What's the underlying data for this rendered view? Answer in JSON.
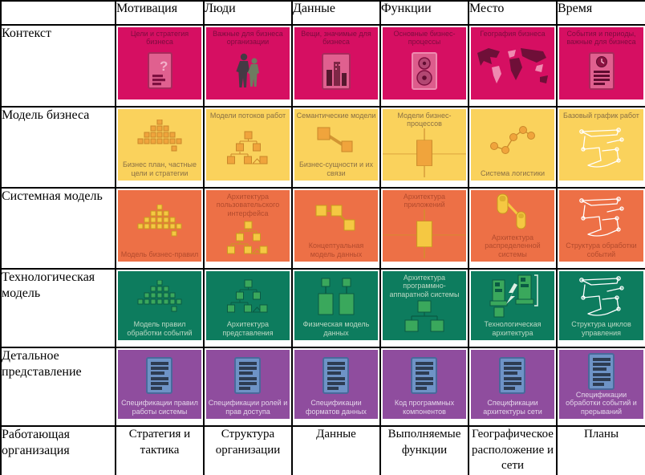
{
  "table": {
    "title": "zachman-framework-matrix",
    "corner_label": "",
    "columns": [
      {
        "key": "motivation",
        "label": "Мотивация"
      },
      {
        "key": "people",
        "label": "Люди"
      },
      {
        "key": "data",
        "label": "Данные"
      },
      {
        "key": "functions",
        "label": "Функции"
      },
      {
        "key": "place",
        "label": "Место"
      },
      {
        "key": "time",
        "label": "Время"
      }
    ],
    "rows": [
      {
        "key": "context",
        "label": "Контекст",
        "type": "colored",
        "bg_color": "#d60f62",
        "caption_color": "#7c0c3e",
        "icon_fill": "#e0608f",
        "icon_stroke": "#8c1342",
        "cells": [
          {
            "caption_top": "Цели и стратегия бизнеса",
            "caption_bottom": "",
            "icon": "document-question"
          },
          {
            "caption_top": "Важные для бизнеса организации",
            "caption_bottom": "",
            "icon": "people-pair"
          },
          {
            "caption_top": "Вещи, значимые для бизнеса",
            "caption_bottom": "",
            "icon": "city-buildings"
          },
          {
            "caption_top": "Основные бизнес-процессы",
            "caption_bottom": "",
            "icon": "process-disks"
          },
          {
            "caption_top": "География бизнеса",
            "caption_bottom": "",
            "icon": "world-map"
          },
          {
            "caption_top": "События и периоды, важные для бизнеса",
            "caption_bottom": "",
            "icon": "document-clock"
          }
        ]
      },
      {
        "key": "business-model",
        "label": "Модель бизнеса",
        "type": "colored",
        "bg_color": "#fad25c",
        "caption_color": "#8a7044",
        "icon_fill": "#f0a43c",
        "icon_stroke": "#c9872a",
        "cells": [
          {
            "caption_top": "",
            "caption_bottom": "Бизнес план, частные цели и стратегии",
            "icon": "pyramid"
          },
          {
            "caption_top": "Модели потоков работ",
            "caption_bottom": "",
            "icon": "workflow-tree"
          },
          {
            "caption_top": "Семантические модели",
            "caption_bottom": "Бизнес-сущности и их связи",
            "icon": "entity-link"
          },
          {
            "caption_top": "Модели бизнес-процессов",
            "caption_bottom": "",
            "icon": "swimlane"
          },
          {
            "caption_top": "",
            "caption_bottom": "Система логистики",
            "icon": "logistics-network"
          },
          {
            "caption_top": "Базовый график работ",
            "caption_bottom": "",
            "icon": "schedule-sketch"
          }
        ]
      },
      {
        "key": "system-model",
        "label": "Системная модель",
        "type": "colored",
        "bg_color": "#ed7046",
        "caption_color": "#b34b2d",
        "icon_fill": "#f5c842",
        "icon_stroke": "#c99a1f",
        "cells": [
          {
            "caption_top": "",
            "caption_bottom": "Модель бизнес-правил",
            "icon": "pyramid"
          },
          {
            "caption_top": "Архитектура пользовательского интерфейса",
            "caption_bottom": "",
            "icon": "workflow-tree"
          },
          {
            "caption_top": "",
            "caption_bottom": "Концептуальная модель данных",
            "icon": "entity-chain"
          },
          {
            "caption_top": "Архитектура приложений",
            "caption_bottom": "",
            "icon": "swimlane"
          },
          {
            "caption_top": "",
            "caption_bottom": "Архитектура распределенной системы",
            "icon": "capsule-link"
          },
          {
            "caption_top": "",
            "caption_bottom": "Структура обработки событий",
            "icon": "schedule-sketch"
          }
        ]
      },
      {
        "key": "technology-model",
        "label": "Технологическая модель",
        "type": "colored",
        "bg_color": "#0d7c5e",
        "caption_color": "#bcd9c4",
        "icon_fill": "#3aa85c",
        "icon_stroke": "#0a5a43",
        "cells": [
          {
            "caption_top": "",
            "caption_bottom": "Модель правил обработки событий",
            "icon": "pyramid"
          },
          {
            "caption_top": "",
            "caption_bottom": "Архитектура представления",
            "icon": "workflow-tree"
          },
          {
            "caption_top": "",
            "caption_bottom": "Физическая модель данных",
            "icon": "table-pair"
          },
          {
            "caption_top": "Архитектура программно-аппаратной системы",
            "caption_bottom": "",
            "icon": "hw-tree"
          },
          {
            "caption_top": "",
            "caption_bottom": "Технологическая архитектура",
            "icon": "computer-towers"
          },
          {
            "caption_top": "",
            "caption_bottom": "Структура циклов управления",
            "icon": "schedule-sketch"
          }
        ]
      },
      {
        "key": "detailed-representation",
        "label": "Детальное представление",
        "type": "colored",
        "bg_color": "#8f4d9e",
        "caption_color": "#e3d4e9",
        "icon_fill": "#6e93c6",
        "icon_stroke": "#49699b",
        "cells": [
          {
            "caption_top": "",
            "caption_bottom": "Спецификации правил работы системы",
            "icon": "spec-document"
          },
          {
            "caption_top": "",
            "caption_bottom": "Спецификации ролей и прав доступа",
            "icon": "spec-document"
          },
          {
            "caption_top": "",
            "caption_bottom": "Спецификации форматов данных",
            "icon": "spec-document"
          },
          {
            "caption_top": "",
            "caption_bottom": "Код программных компонентов",
            "icon": "spec-document"
          },
          {
            "caption_top": "",
            "caption_bottom": "Спецификации архитектуры сети",
            "icon": "spec-document"
          },
          {
            "caption_top": "",
            "caption_bottom": "Спецификации обработки событий и прерываний",
            "icon": "spec-document"
          }
        ]
      },
      {
        "key": "working-organization",
        "label": "Работающая организация",
        "type": "plain",
        "cells": [
          {
            "caption": "Стратегия и тактика"
          },
          {
            "caption": "Структура организации"
          },
          {
            "caption": "Данные"
          },
          {
            "caption": "Выполняемые функции"
          },
          {
            "caption": "Географическое расположение и сети"
          },
          {
            "caption": "Планы"
          }
        ]
      }
    ]
  }
}
